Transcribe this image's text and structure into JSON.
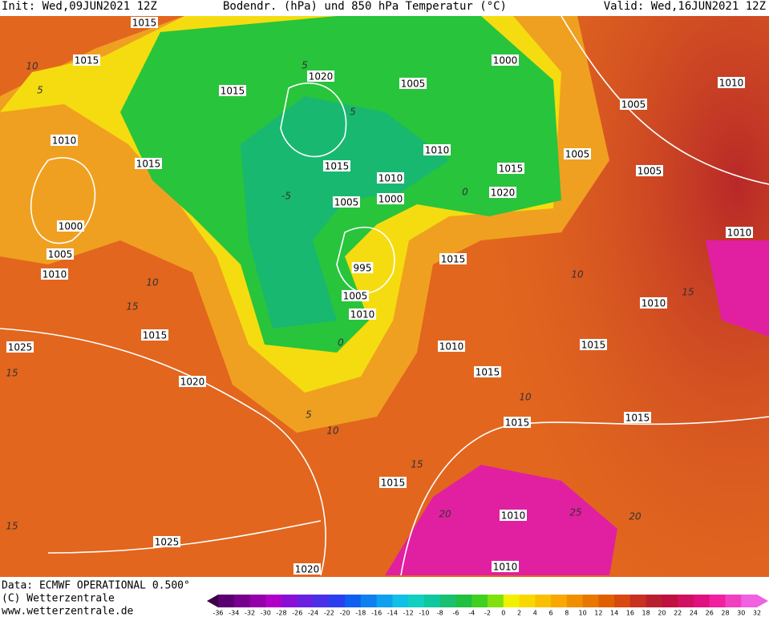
{
  "header": {
    "init": "Init: Wed,09JUN2021 12Z",
    "title": "Bodendr. (hPa) und 850 hPa Temperatur (°C)",
    "valid": "Valid: Wed,16JUN2021 12Z"
  },
  "isobar_labels": [
    "1015",
    "1015",
    "1015",
    "1020",
    "1000",
    "1005",
    "1010",
    "1005",
    "1010",
    "1015",
    "1015",
    "1010",
    "1005",
    "1005",
    "1010",
    "1015",
    "1020",
    "1005",
    "1000",
    "1000",
    "1005",
    "1010",
    "995",
    "1015",
    "1010",
    "1005",
    "1010",
    "1010",
    "1015",
    "1025",
    "1010",
    "1015",
    "1015",
    "1020",
    "1015",
    "1015",
    "1015",
    "1010",
    "1025",
    "1020",
    "1010"
  ],
  "temperature_labels": [
    "10",
    "5",
    "5",
    "0",
    "5",
    "-5",
    "10",
    "15",
    "10",
    "15",
    "5",
    "10",
    "15",
    "20",
    "25",
    "20",
    "15",
    "15",
    "0",
    "10"
  ],
  "footer": {
    "data": "Data: ECMWF OPERATIONAL 0.500°",
    "copyright": "(C) Wetterzentrale",
    "url": "www.wetterzentrale.de"
  },
  "colorbar": {
    "labels": [
      "-36",
      "-34",
      "-32",
      "-30",
      "-28",
      "-26",
      "-24",
      "-22",
      "-20",
      "-18",
      "-16",
      "-14",
      "-12",
      "-10",
      "-8",
      "-6",
      "-4",
      "-2",
      "0",
      "2",
      "4",
      "6",
      "8",
      "10",
      "12",
      "14",
      "16",
      "18",
      "20",
      "22",
      "24",
      "26",
      "28",
      "30",
      "32"
    ]
  }
}
